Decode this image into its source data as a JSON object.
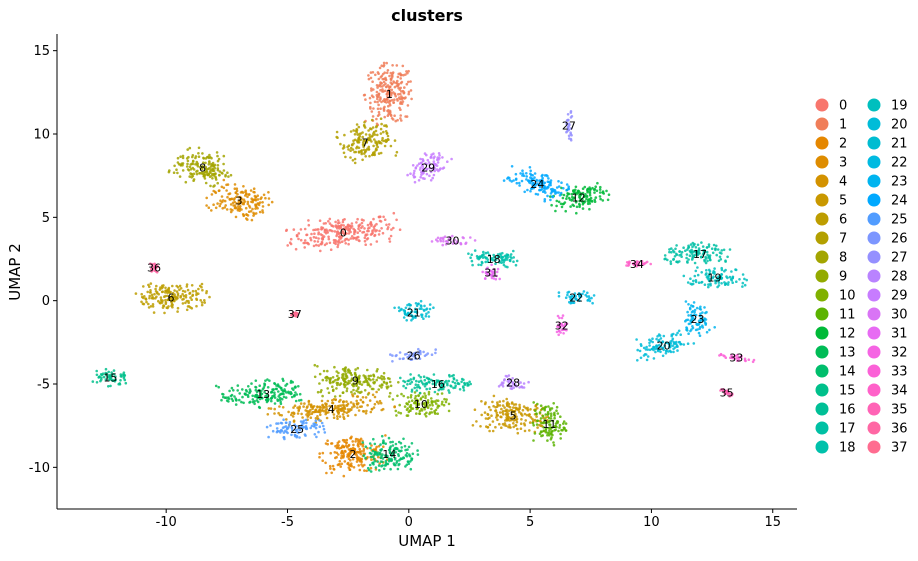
{
  "chart_data": {
    "type": "scatter",
    "title": "clusters",
    "xlabel": "UMAP 1",
    "ylabel": "UMAP 2",
    "xlim": [
      -14.5,
      16
    ],
    "ylim": [
      -12.5,
      16
    ],
    "xticks": [
      -10,
      -5,
      0,
      5,
      10,
      15
    ],
    "xtick_labels": [
      "-10",
      "-5",
      "0",
      "5",
      "10",
      "15"
    ],
    "yticks": [
      -10,
      -5,
      0,
      5,
      10,
      15
    ],
    "ytick_labels": [
      "-10",
      "-5",
      "0",
      "5",
      "10",
      "15"
    ],
    "grid": false,
    "legend_position": "right",
    "clusters": [
      {
        "label": "0",
        "color": "#F8766D",
        "x": -2.7,
        "y": 4.1,
        "sx": 2.0,
        "sy": 0.8,
        "rot": 10
      },
      {
        "label": "1",
        "color": "#F07E59",
        "x": -0.8,
        "y": 12.4,
        "sx": 0.9,
        "sy": 1.6,
        "rot": 0
      },
      {
        "label": "2",
        "color": "#E58700",
        "x": -2.3,
        "y": -9.2,
        "sx": 1.2,
        "sy": 1.0,
        "rot": 0
      },
      {
        "label": "3",
        "color": "#DE8C00",
        "x": -7.0,
        "y": 6.0,
        "sx": 1.1,
        "sy": 0.9,
        "rot": -20
      },
      {
        "label": "4",
        "color": "#D39200",
        "x": -3.2,
        "y": -6.5,
        "sx": 2.2,
        "sy": 0.6,
        "rot": 10
      },
      {
        "label": "5",
        "color": "#C99800",
        "x": 4.3,
        "y": -6.9,
        "sx": 1.3,
        "sy": 0.9,
        "rot": -10
      },
      {
        "label": "6",
        "color": "#BD9D00",
        "x": -9.8,
        "y": 0.2,
        "sx": 1.4,
        "sy": 0.8,
        "rot": 0
      },
      {
        "label": "7",
        "color": "#B3A000",
        "x": -1.8,
        "y": 9.5,
        "sx": 1.0,
        "sy": 1.0,
        "rot": 20
      },
      {
        "label": "8",
        "color": "#A3A500",
        "x": -8.5,
        "y": 8.0,
        "sx": 1.1,
        "sy": 0.9,
        "rot": -20
      },
      {
        "label": "9",
        "color": "#93AA00",
        "x": -2.2,
        "y": -4.8,
        "sx": 1.5,
        "sy": 0.8,
        "rot": 0
      },
      {
        "label": "10",
        "color": "#80B100",
        "x": 0.5,
        "y": -6.2,
        "sx": 1.0,
        "sy": 0.7,
        "rot": 0
      },
      {
        "label": "11",
        "color": "#5BB300",
        "x": 5.8,
        "y": -7.4,
        "sx": 0.6,
        "sy": 1.1,
        "rot": 0
      },
      {
        "label": "12",
        "color": "#00BA38",
        "x": 7.0,
        "y": 6.2,
        "sx": 1.1,
        "sy": 0.7,
        "rot": 25
      },
      {
        "label": "13",
        "color": "#00BC56",
        "x": -6.0,
        "y": -5.6,
        "sx": 1.6,
        "sy": 0.7,
        "rot": 10
      },
      {
        "label": "14",
        "color": "#00BE6C",
        "x": -0.8,
        "y": -9.2,
        "sx": 1.0,
        "sy": 0.9,
        "rot": 0
      },
      {
        "label": "15",
        "color": "#00C08B",
        "x": -12.3,
        "y": -4.6,
        "sx": 0.7,
        "sy": 0.5,
        "rot": 0
      },
      {
        "label": "16",
        "color": "#00BF96",
        "x": 1.2,
        "y": -5.0,
        "sx": 1.4,
        "sy": 0.5,
        "rot": 0
      },
      {
        "label": "17",
        "color": "#00C0A4",
        "x": 12.0,
        "y": 2.8,
        "sx": 1.3,
        "sy": 0.6,
        "rot": 0
      },
      {
        "label": "18",
        "color": "#00C1AB",
        "x": 3.5,
        "y": 2.5,
        "sx": 1.1,
        "sy": 0.45,
        "rot": 0
      },
      {
        "label": "19",
        "color": "#00BFBE",
        "x": 12.6,
        "y": 1.4,
        "sx": 1.2,
        "sy": 0.5,
        "rot": 0
      },
      {
        "label": "20",
        "color": "#00BCD8",
        "x": 10.5,
        "y": -2.7,
        "sx": 1.1,
        "sy": 0.6,
        "rot": 15
      },
      {
        "label": "21",
        "color": "#00BCD1",
        "x": 0.2,
        "y": -0.7,
        "sx": 0.7,
        "sy": 0.6,
        "rot": 0
      },
      {
        "label": "22",
        "color": "#00BAE1",
        "x": 6.9,
        "y": 0.2,
        "sx": 0.8,
        "sy": 0.35,
        "rot": 0
      },
      {
        "label": "23",
        "color": "#00B4EF",
        "x": 11.9,
        "y": -1.1,
        "sx": 0.5,
        "sy": 1.0,
        "rot": 0
      },
      {
        "label": "24",
        "color": "#00A9FF",
        "x": 5.3,
        "y": 7.0,
        "sx": 1.2,
        "sy": 0.7,
        "rot": -25
      },
      {
        "label": "25",
        "color": "#519CFF",
        "x": -4.6,
        "y": -7.7,
        "sx": 1.1,
        "sy": 0.5,
        "rot": 0
      },
      {
        "label": "26",
        "color": "#7C96FF",
        "x": 0.2,
        "y": -3.3,
        "sx": 0.8,
        "sy": 0.3,
        "rot": 10
      },
      {
        "label": "27",
        "color": "#9590FF",
        "x": 6.6,
        "y": 10.5,
        "sx": 0.15,
        "sy": 0.8,
        "rot": 0
      },
      {
        "label": "28",
        "color": "#B983FF",
        "x": 4.3,
        "y": -4.9,
        "sx": 0.6,
        "sy": 0.4,
        "rot": 0
      },
      {
        "label": "29",
        "color": "#C77CFF",
        "x": 0.8,
        "y": 8.0,
        "sx": 0.6,
        "sy": 0.9,
        "rot": -30
      },
      {
        "label": "30",
        "color": "#D974F5",
        "x": 1.8,
        "y": 3.6,
        "sx": 0.9,
        "sy": 0.25,
        "rot": 0
      },
      {
        "label": "31",
        "color": "#E76BF3",
        "x": 3.4,
        "y": 1.7,
        "sx": 0.3,
        "sy": 0.45,
        "rot": 0
      },
      {
        "label": "32",
        "color": "#F564E3",
        "x": 6.3,
        "y": -1.5,
        "sx": 0.2,
        "sy": 0.6,
        "rot": 0
      },
      {
        "label": "33",
        "color": "#FB61D7",
        "x": 13.5,
        "y": -3.4,
        "sx": 0.7,
        "sy": 0.2,
        "rot": -10
      },
      {
        "label": "34",
        "color": "#FF61C9",
        "x": 9.4,
        "y": 2.2,
        "sx": 0.5,
        "sy": 0.15,
        "rot": 0
      },
      {
        "label": "35",
        "color": "#FF63B6",
        "x": 13.1,
        "y": -5.5,
        "sx": 0.35,
        "sy": 0.12,
        "rot": -35
      },
      {
        "label": "36",
        "color": "#FF67A4",
        "x": -10.5,
        "y": 2.0,
        "sx": 0.15,
        "sy": 0.25,
        "rot": 0
      },
      {
        "label": "37",
        "color": "#FF6C90",
        "x": -4.7,
        "y": -0.8,
        "sx": 0.12,
        "sy": 0.12,
        "rot": 0
      }
    ]
  }
}
